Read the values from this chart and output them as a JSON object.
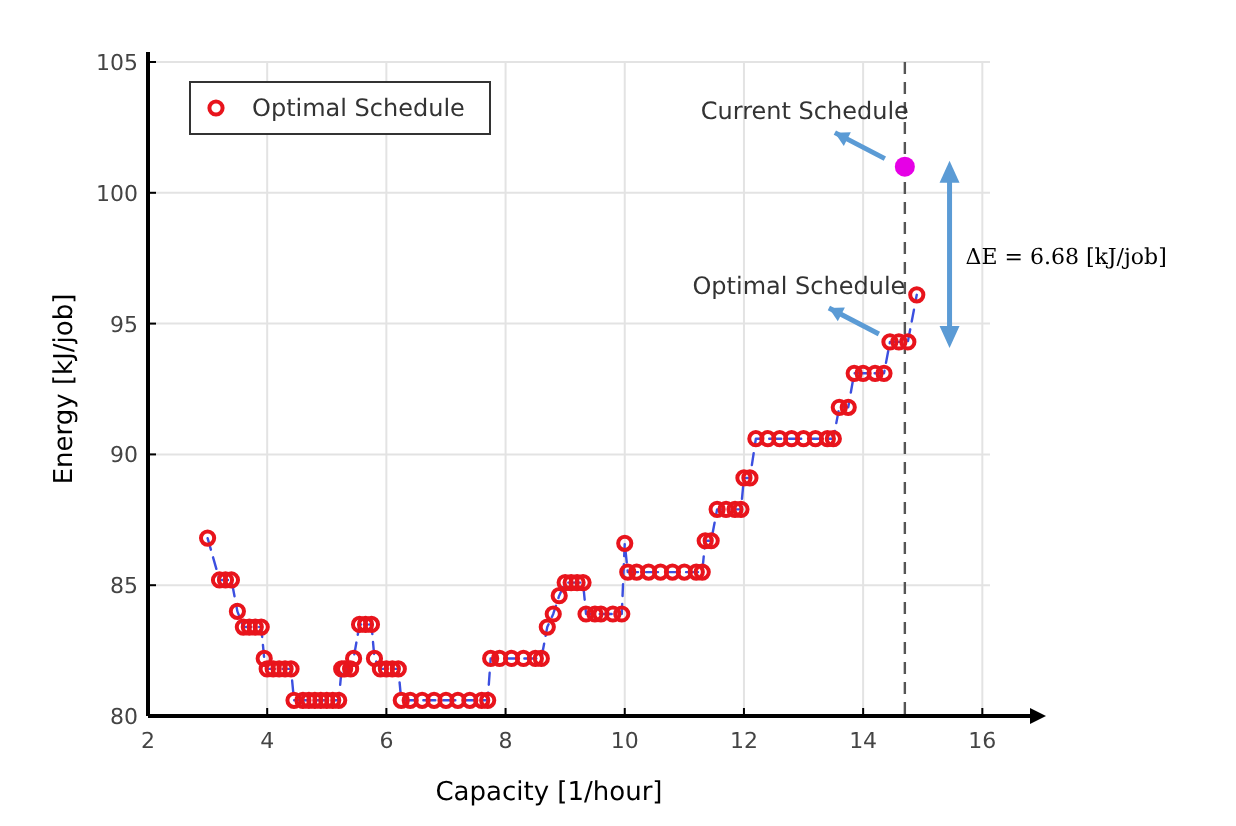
{
  "chart_data": {
    "type": "scatter",
    "xlabel": "Capacity [1/hour]",
    "ylabel": "Energy [kJ/job]",
    "xlim": [
      2,
      16.8
    ],
    "ylim": [
      80,
      105
    ],
    "xticks": [
      2,
      4,
      6,
      8,
      10,
      12,
      14,
      16
    ],
    "yticks": [
      80,
      85,
      90,
      95,
      100,
      105
    ],
    "grid": true,
    "legend": "top left",
    "series": [
      {
        "type": "line",
        "color": "#3b4fe0",
        "line_style": "dashed",
        "x": [
          3.0,
          3.2,
          3.3,
          3.4,
          3.5,
          3.6,
          3.7,
          3.8,
          3.9,
          3.95,
          4.0,
          4.1,
          4.2,
          4.3,
          4.4,
          4.45,
          4.6,
          4.7,
          4.8,
          4.9,
          5.0,
          5.1,
          5.2,
          5.25,
          5.3,
          5.4,
          5.45,
          5.55,
          5.65,
          5.75,
          5.8,
          5.9,
          6.0,
          6.1,
          6.2,
          6.25,
          6.4,
          6.6,
          6.8,
          7.0,
          7.2,
          7.4,
          7.6,
          7.7,
          7.75,
          7.9,
          8.1,
          8.3,
          8.5,
          8.6,
          8.7,
          8.8,
          8.9,
          9.0,
          9.1,
          9.2,
          9.3,
          9.35,
          9.5,
          9.6,
          9.8,
          9.95,
          10.0,
          10.05,
          10.2,
          10.4,
          10.6,
          10.8,
          11.0,
          11.2,
          11.3,
          11.35,
          11.45,
          11.55,
          11.7,
          11.85,
          11.95,
          12.0,
          12.1,
          12.2,
          12.4,
          12.6,
          12.8,
          13.0,
          13.2,
          13.4,
          13.5,
          13.6,
          13.75,
          13.85,
          14.0,
          14.2,
          14.35,
          14.45,
          14.6,
          14.75,
          14.9
        ],
        "values": [
          86.8,
          85.2,
          85.2,
          85.2,
          84.0,
          83.4,
          83.4,
          83.4,
          83.4,
          82.2,
          81.8,
          81.8,
          81.8,
          81.8,
          81.8,
          80.6,
          80.6,
          80.6,
          80.6,
          80.6,
          80.6,
          80.6,
          80.6,
          81.8,
          81.8,
          81.8,
          82.2,
          83.5,
          83.5,
          83.5,
          82.2,
          81.8,
          81.8,
          81.8,
          81.8,
          80.6,
          80.6,
          80.6,
          80.6,
          80.6,
          80.6,
          80.6,
          80.6,
          80.6,
          82.2,
          82.2,
          82.2,
          82.2,
          82.2,
          82.2,
          83.4,
          83.9,
          84.6,
          85.1,
          85.1,
          85.1,
          85.1,
          83.9,
          83.9,
          83.9,
          83.9,
          83.9,
          86.6,
          85.5,
          85.5,
          85.5,
          85.5,
          85.5,
          85.5,
          85.5,
          85.5,
          86.7,
          86.7,
          87.9,
          87.9,
          87.9,
          87.9,
          89.1,
          89.1,
          90.6,
          90.6,
          90.6,
          90.6,
          90.6,
          90.6,
          90.6,
          90.6,
          91.8,
          91.8,
          93.1,
          93.1,
          93.1,
          93.1,
          94.3,
          94.3,
          94.3,
          96.1
        ]
      },
      {
        "name": "Optimal Schedule",
        "color": "#e8141c",
        "marker": "circle",
        "x": [
          3.0,
          3.2,
          3.3,
          3.4,
          3.5,
          3.6,
          3.7,
          3.8,
          3.9,
          3.95,
          4.0,
          4.1,
          4.2,
          4.3,
          4.4,
          4.45,
          4.6,
          4.7,
          4.8,
          4.9,
          5.0,
          5.1,
          5.2,
          5.25,
          5.3,
          5.4,
          5.45,
          5.55,
          5.65,
          5.75,
          5.8,
          5.9,
          6.0,
          6.1,
          6.2,
          6.25,
          6.4,
          6.6,
          6.8,
          7.0,
          7.2,
          7.4,
          7.6,
          7.7,
          7.75,
          7.9,
          8.1,
          8.3,
          8.5,
          8.6,
          8.7,
          8.8,
          8.9,
          9.0,
          9.1,
          9.2,
          9.3,
          9.35,
          9.5,
          9.6,
          9.8,
          9.95,
          10.0,
          10.05,
          10.2,
          10.4,
          10.6,
          10.8,
          11.0,
          11.2,
          11.3,
          11.35,
          11.45,
          11.55,
          11.7,
          11.85,
          11.95,
          12.0,
          12.1,
          12.2,
          12.4,
          12.6,
          12.8,
          13.0,
          13.2,
          13.4,
          13.5,
          13.6,
          13.75,
          13.85,
          14.0,
          14.2,
          14.35,
          14.45,
          14.6,
          14.75,
          14.9
        ],
        "values": [
          86.8,
          85.2,
          85.2,
          85.2,
          84.0,
          83.4,
          83.4,
          83.4,
          83.4,
          82.2,
          81.8,
          81.8,
          81.8,
          81.8,
          81.8,
          80.6,
          80.6,
          80.6,
          80.6,
          80.6,
          80.6,
          80.6,
          80.6,
          81.8,
          81.8,
          81.8,
          82.2,
          83.5,
          83.5,
          83.5,
          82.2,
          81.8,
          81.8,
          81.8,
          81.8,
          80.6,
          80.6,
          80.6,
          80.6,
          80.6,
          80.6,
          80.6,
          80.6,
          80.6,
          82.2,
          82.2,
          82.2,
          82.2,
          82.2,
          82.2,
          83.4,
          83.9,
          84.6,
          85.1,
          85.1,
          85.1,
          85.1,
          83.9,
          83.9,
          83.9,
          83.9,
          83.9,
          86.6,
          85.5,
          85.5,
          85.5,
          85.5,
          85.5,
          85.5,
          85.5,
          85.5,
          86.7,
          86.7,
          87.9,
          87.9,
          87.9,
          87.9,
          89.1,
          89.1,
          90.6,
          90.6,
          90.6,
          90.6,
          90.6,
          90.6,
          90.6,
          90.6,
          91.8,
          91.8,
          93.1,
          93.1,
          93.1,
          93.1,
          94.3,
          94.3,
          94.3,
          96.1
        ]
      },
      {
        "color": "#e600e6",
        "marker": "circle",
        "x": [
          14.7
        ],
        "values": [
          101
        ]
      }
    ],
    "ref_lines": [
      {
        "axis": "x",
        "value": 14.7,
        "color": "#555555",
        "line_style": "dashed"
      }
    ],
    "annotations": [
      {
        "text": "Current Schedule",
        "x": 14.7,
        "y": 101
      },
      {
        "text": "Optimal Schedule",
        "x": 14.6,
        "y": 94.3
      },
      "ΔE = 6.68 [kJ/job]"
    ]
  }
}
